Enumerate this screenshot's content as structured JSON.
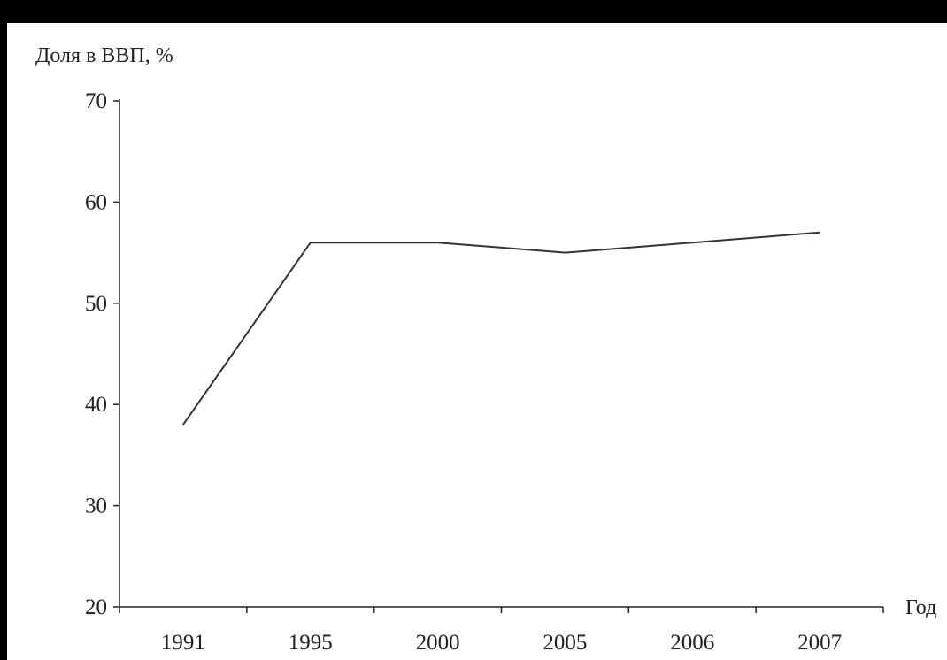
{
  "colors": {
    "background": "#000000",
    "plot_background": "#ffffff",
    "axis": "#222222",
    "line": "#333333"
  },
  "chart_data": {
    "type": "line",
    "title": "",
    "ylabel": "Доля в ВВП, %",
    "xlabel": "Год",
    "categories": [
      "1991",
      "1995",
      "2000",
      "2005",
      "2006",
      "2007"
    ],
    "series": [
      {
        "values": [
          38,
          56,
          56,
          55,
          56,
          57
        ]
      }
    ],
    "ylim": [
      20,
      70
    ],
    "yticks": [
      20,
      30,
      40,
      50,
      60,
      70
    ],
    "grid": false,
    "legend": "none"
  }
}
